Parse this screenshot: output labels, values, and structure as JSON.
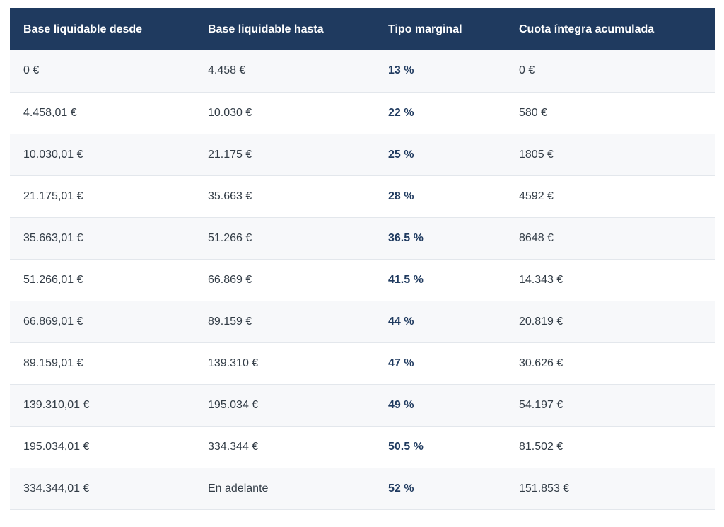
{
  "table": {
    "headers": [
      "Base liquidable desde",
      "Base liquidable hasta",
      "Tipo marginal",
      "Cuota íntegra acumulada"
    ],
    "rows": [
      [
        "0 €",
        "4.458 €",
        "13 %",
        "0 €"
      ],
      [
        "4.458,01 €",
        "10.030 €",
        "22 %",
        "580 €"
      ],
      [
        "10.030,01 €",
        "21.175 €",
        "25 %",
        "1805 €"
      ],
      [
        "21.175,01 €",
        "35.663 €",
        "28 %",
        "4592 €"
      ],
      [
        "35.663,01 €",
        "51.266 €",
        "36.5 %",
        "8648 €"
      ],
      [
        "51.266,01 €",
        "66.869 €",
        "41.5 %",
        "14.343 €"
      ],
      [
        "66.869,01 €",
        "89.159 €",
        "44 %",
        "20.819 €"
      ],
      [
        "89.159,01 €",
        "139.310 €",
        "47 %",
        "30.626 €"
      ],
      [
        "139.310,01 €",
        "195.034 €",
        "49 %",
        "54.197 €"
      ],
      [
        "195.034,01 €",
        "334.344 €",
        "50.5 %",
        "81.502 €"
      ],
      [
        "334.344,01 €",
        "En adelante",
        "52 %",
        "151.853 €"
      ]
    ]
  },
  "colors": {
    "header_bg": "#1f3a5f",
    "header_text": "#ffffff",
    "row_alt": "#f7f8fa",
    "rate_text": "#1f3a5f"
  }
}
